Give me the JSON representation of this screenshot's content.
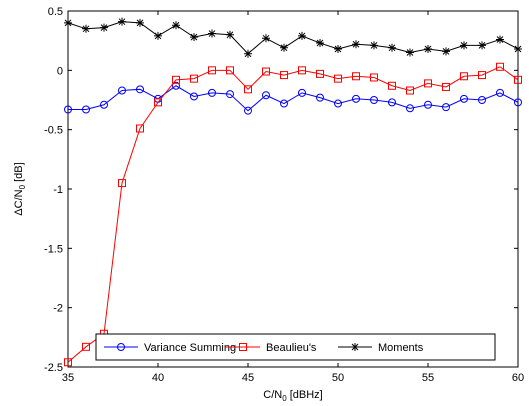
{
  "chart_data": {
    "type": "line",
    "xlabel": "C/N",
    "xlabel_sub": "0",
    "xlabel_unit": " [dBHz]",
    "ylabel": "ΔC/N",
    "ylabel_sub": "0",
    "ylabel_unit": " [dB]",
    "xlim": [
      35,
      60
    ],
    "ylim": [
      -2.5,
      0.5
    ],
    "xticks": [
      35,
      40,
      45,
      50,
      55,
      60
    ],
    "yticks": [
      0.5,
      0,
      -0.5,
      -1,
      -1.5,
      -2,
      -2.5
    ],
    "ytick_labels": [
      "0.5",
      "0",
      "-0.5",
      "-1",
      "-1.5",
      "-2",
      "-2.5"
    ],
    "grid": false,
    "legend_position": "bottom",
    "x": [
      35,
      36,
      37,
      38,
      39,
      40,
      41,
      42,
      43,
      44,
      45,
      46,
      47,
      48,
      49,
      50,
      51,
      52,
      53,
      54,
      55,
      56,
      57,
      58,
      59,
      60
    ],
    "series": [
      {
        "name": "Variance Summing",
        "color": "#0000ff",
        "marker": "circle",
        "values": [
          -0.33,
          -0.33,
          -0.29,
          -0.17,
          -0.16,
          -0.24,
          -0.13,
          -0.22,
          -0.19,
          -0.2,
          -0.34,
          -0.21,
          -0.28,
          -0.19,
          -0.23,
          -0.28,
          -0.24,
          -0.25,
          -0.27,
          -0.32,
          -0.29,
          -0.31,
          -0.24,
          -0.25,
          -0.19,
          -0.27
        ]
      },
      {
        "name": "Beaulieu's",
        "color": "#ff0000",
        "marker": "square",
        "values": [
          -2.46,
          -2.33,
          -2.22,
          -0.95,
          -0.49,
          -0.27,
          -0.08,
          -0.07,
          0.0,
          0.0,
          -0.16,
          -0.01,
          -0.04,
          0.0,
          -0.03,
          -0.07,
          -0.05,
          -0.06,
          -0.13,
          -0.17,
          -0.11,
          -0.14,
          -0.05,
          -0.04,
          0.03,
          -0.08
        ]
      },
      {
        "name": "Moments",
        "color": "#000000",
        "marker": "star",
        "values": [
          0.4,
          0.35,
          0.36,
          0.41,
          0.4,
          0.29,
          0.38,
          0.28,
          0.31,
          0.3,
          0.14,
          0.27,
          0.19,
          0.29,
          0.23,
          0.18,
          0.22,
          0.21,
          0.19,
          0.15,
          0.18,
          0.16,
          0.21,
          0.21,
          0.26,
          0.18
        ]
      }
    ]
  }
}
